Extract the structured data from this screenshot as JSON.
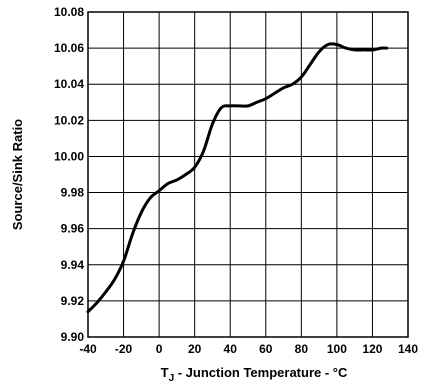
{
  "chart_data": {
    "type": "line",
    "xlabel_main": "T",
    "xlabel_sub": "J",
    "xlabel_rest": " - Junction Temperature - °C",
    "ylabel": "Source/Sink Ratio",
    "xlim": [
      -40,
      140
    ],
    "ylim": [
      9.9,
      10.08
    ],
    "x_ticks": [
      -40,
      -20,
      0,
      20,
      40,
      60,
      80,
      100,
      120,
      140
    ],
    "y_ticks": [
      9.9,
      9.92,
      9.94,
      9.96,
      9.98,
      10.0,
      10.02,
      10.04,
      10.06,
      10.08
    ],
    "x_tick_labels": [
      "-40",
      "-20",
      "0",
      "20",
      "40",
      "60",
      "80",
      "100",
      "120",
      "140"
    ],
    "y_tick_labels": [
      "9.90",
      "9.92",
      "9.94",
      "9.96",
      "9.98",
      "10.00",
      "10.02",
      "10.04",
      "10.06",
      "10.08"
    ],
    "grid": true,
    "series": [
      {
        "color": "#000000",
        "x": [
          -40,
          -35,
          -30,
          -25,
          -20,
          -15,
          -10,
          -5,
          0,
          5,
          10,
          15,
          20,
          25,
          30,
          35,
          40,
          45,
          50,
          55,
          60,
          65,
          70,
          75,
          80,
          85,
          90,
          95,
          100,
          105,
          110,
          115,
          120,
          125,
          128
        ],
        "y": [
          9.914,
          9.919,
          9.925,
          9.932,
          9.942,
          9.957,
          9.969,
          9.977,
          9.981,
          9.985,
          9.987,
          9.99,
          9.994,
          10.003,
          10.018,
          10.027,
          10.028,
          10.028,
          10.028,
          10.03,
          10.032,
          10.035,
          10.038,
          10.04,
          10.044,
          10.051,
          10.058,
          10.062,
          10.062,
          10.06,
          10.059,
          10.059,
          10.059,
          10.06,
          10.06
        ]
      }
    ]
  }
}
